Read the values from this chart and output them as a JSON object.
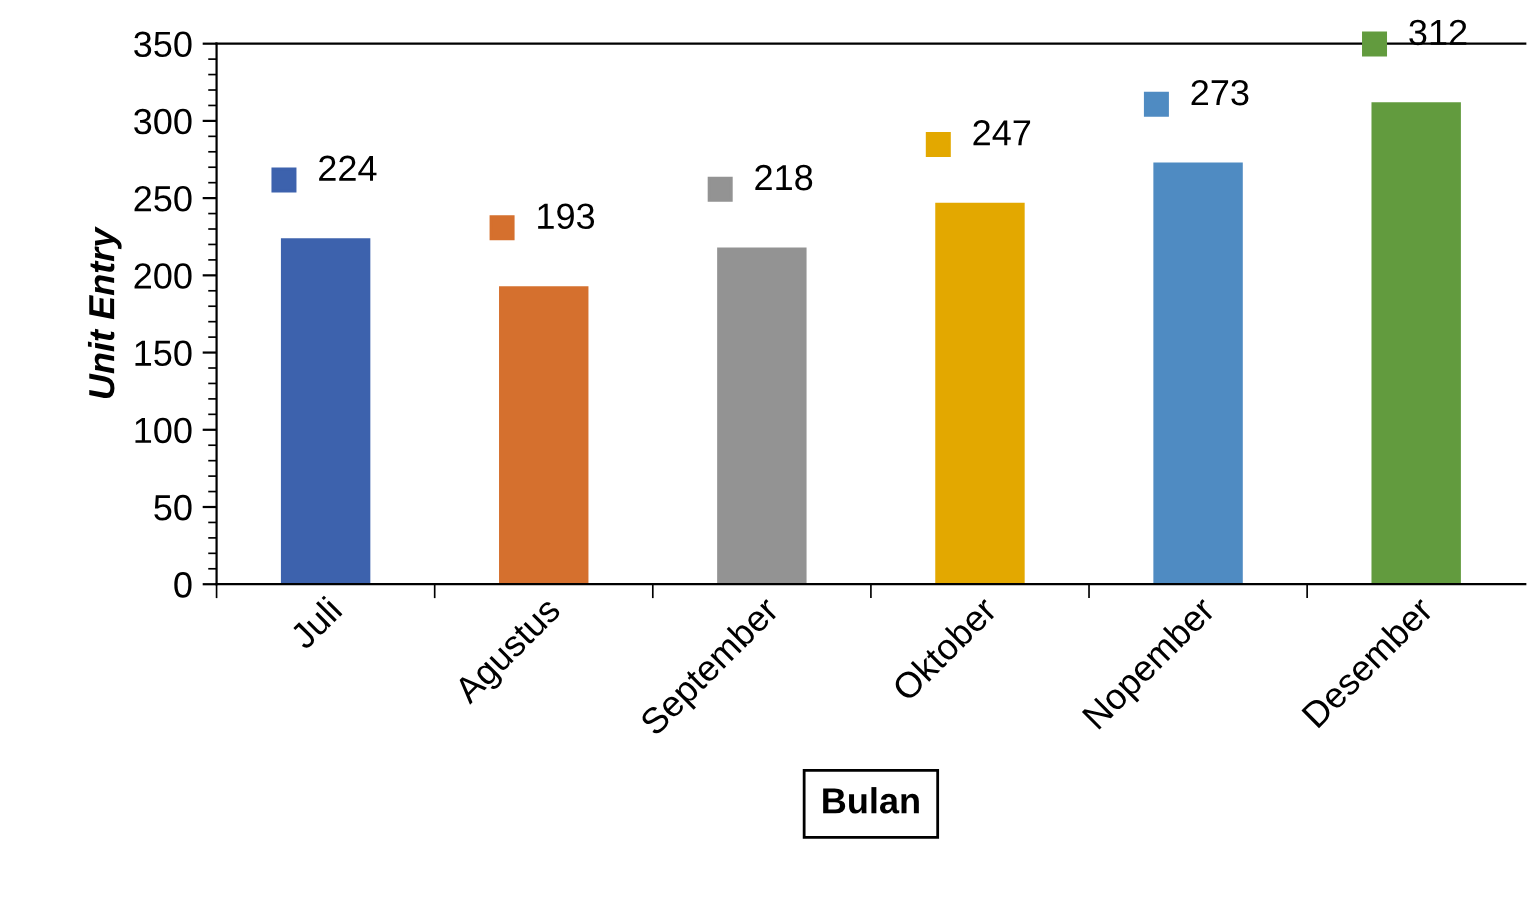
{
  "chart_data": {
    "type": "bar",
    "categories": [
      "Juli",
      "Agustus",
      "September",
      "Oktober",
      "Nopember",
      "Desember"
    ],
    "values": [
      224,
      193,
      218,
      247,
      273,
      312
    ],
    "colors": [
      "#3d62ad",
      "#d5702e",
      "#939393",
      "#e3a800",
      "#4f8bc2",
      "#629b3e"
    ],
    "ylim": [
      0,
      350
    ],
    "yticks": [
      0,
      50,
      100,
      150,
      200,
      250,
      300,
      350
    ],
    "xlabel": "Bulan",
    "ylabel": "Unit Entry",
    "data_labels": true
  }
}
